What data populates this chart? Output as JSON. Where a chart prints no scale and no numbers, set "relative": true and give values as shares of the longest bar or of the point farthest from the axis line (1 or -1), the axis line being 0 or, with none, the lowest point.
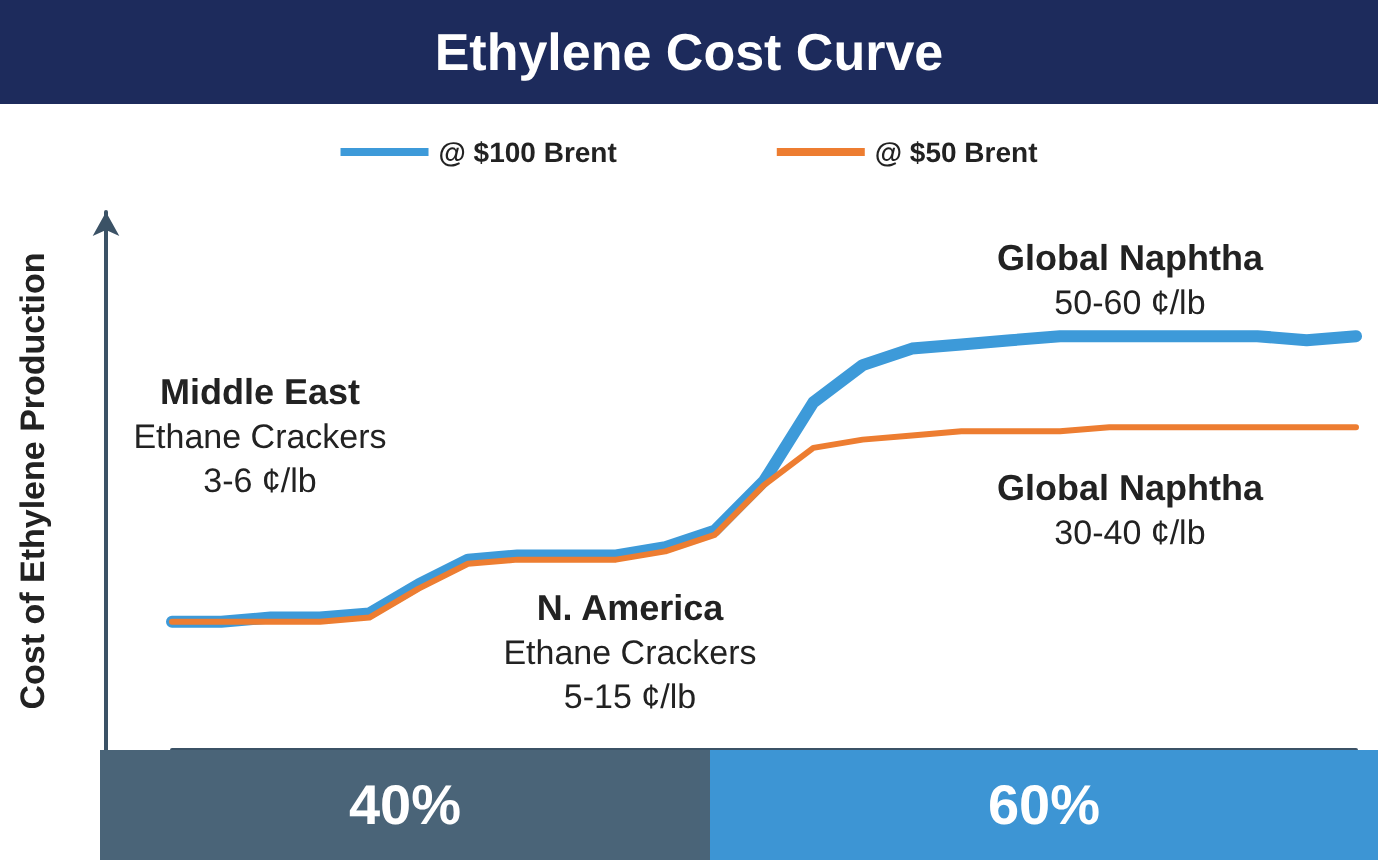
{
  "chart_data": {
    "type": "line",
    "title": "Ethylene Cost Curve",
    "ylabel": "Cost of Ethylene Production",
    "relative": true,
    "legend": "top",
    "marker": "none",
    "line_style": "solid",
    "grid": false,
    "categories": [
      null,
      null,
      null,
      null,
      null,
      null,
      null,
      null,
      null,
      null,
      null,
      null,
      null,
      null,
      null,
      null,
      null,
      null,
      null,
      null,
      null,
      null,
      null,
      null,
      null
    ],
    "series": [
      {
        "name": "@ $100 Brent",
        "color": "#3d9ad9",
        "values": [
          0.31,
          0.31,
          0.32,
          0.32,
          0.33,
          0.4,
          0.46,
          0.47,
          0.47,
          0.47,
          0.49,
          0.53,
          0.65,
          0.84,
          0.93,
          0.97,
          0.98,
          0.99,
          1,
          1,
          1,
          1,
          1,
          0.99,
          1
        ]
      },
      {
        "name": "@ $50 Brent",
        "color": "#ed7d31",
        "values": [
          0.31,
          0.31,
          0.31,
          0.31,
          0.32,
          0.39,
          0.45,
          0.46,
          0.46,
          0.46,
          0.48,
          0.52,
          0.64,
          0.73,
          0.75,
          0.76,
          0.77,
          0.77,
          0.77,
          0.78,
          0.78,
          0.78,
          0.78,
          0.78,
          0.78
        ]
      }
    ],
    "annotations": [
      "Middle East\nEthane Crackers\n3-6 ¢/lb",
      "N. America\nEthane Crackers\n5-15 ¢/lb",
      "Global Naphtha\n50-60 ¢/lb",
      "Global Naphtha\n30-40 ¢/lb",
      "40%",
      "60%"
    ]
  }
}
